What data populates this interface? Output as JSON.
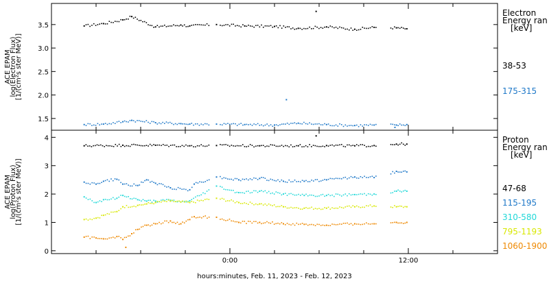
{
  "chart_data": [
    {
      "type": "scatter",
      "title": "",
      "ylabel_lines": [
        "ACE EPAM",
        "log(Electron Flux)",
        "[1/(cm²s ster MeV)]"
      ],
      "ylim": [
        1.25,
        3.95
      ],
      "yticks": [
        1.5,
        2.0,
        2.5,
        3.0,
        3.5
      ],
      "ytick_labels": [
        "1.5",
        "2.0",
        "2.5",
        "3.0",
        "3.5"
      ],
      "legend_title": [
        "Electron",
        "Energy ran",
        "[keV]"
      ],
      "series": [
        {
          "name": "38-53",
          "color": "#000000",
          "values": [
            [
              -9.8,
              3.47
            ],
            [
              -8.5,
              3.52
            ],
            [
              -7.2,
              3.6
            ],
            [
              -6.6,
              3.67
            ],
            [
              -5.0,
              3.45
            ],
            [
              -3.3,
              3.49
            ],
            [
              -2.7,
              3.47
            ],
            [
              -0.9,
              3.5
            ],
            [
              1.0,
              3.47
            ],
            [
              3.0,
              3.46
            ],
            [
              4.6,
              3.42
            ],
            [
              6.5,
              3.45
            ],
            [
              8.4,
              3.4
            ],
            [
              9.7,
              3.44
            ],
            [
              11.2,
              3.43
            ],
            [
              11.9,
              3.41
            ]
          ],
          "outliers": [
            [
              5.8,
              3.78
            ]
          ]
        },
        {
          "name": "175-315",
          "color": "#1e78c8",
          "values": [
            [
              -9.8,
              1.37
            ],
            [
              -8.5,
              1.38
            ],
            [
              -7.2,
              1.43
            ],
            [
              -6.6,
              1.46
            ],
            [
              -5.0,
              1.41
            ],
            [
              -3.3,
              1.39
            ],
            [
              -2.7,
              1.38
            ],
            [
              -0.9,
              1.38
            ],
            [
              1.0,
              1.37
            ],
            [
              3.0,
              1.36
            ],
            [
              4.6,
              1.4
            ],
            [
              6.5,
              1.37
            ],
            [
              8.4,
              1.35
            ],
            [
              9.7,
              1.36
            ],
            [
              11.2,
              1.36
            ],
            [
              11.9,
              1.37
            ]
          ],
          "outliers": [
            [
              3.8,
              1.9
            ],
            [
              11.1,
              1.31
            ]
          ]
        }
      ]
    },
    {
      "type": "scatter",
      "title": "",
      "ylabel_lines": [
        "ACE EPAM",
        "log(Proton Flux)",
        "[1/(cm²s ster MeV)]"
      ],
      "ylim": [
        -0.1,
        4.25
      ],
      "yticks": [
        0,
        1,
        2,
        3,
        4
      ],
      "ytick_labels": [
        "0",
        "1",
        "2",
        "3",
        "4"
      ],
      "legend_title": [
        "Proton",
        "Energy ran",
        "[keV]"
      ],
      "series": [
        {
          "name": "47-68",
          "color": "#000000",
          "values": [
            [
              -9.8,
              3.7
            ],
            [
              -7.2,
              3.72
            ],
            [
              -5.0,
              3.72
            ],
            [
              -2.7,
              3.7
            ],
            [
              -0.9,
              3.71
            ],
            [
              2.0,
              3.7
            ],
            [
              4.6,
              3.7
            ],
            [
              6.5,
              3.71
            ],
            [
              8.4,
              3.7
            ],
            [
              9.7,
              3.71
            ],
            [
              11.2,
              3.76
            ],
            [
              11.9,
              3.76
            ]
          ],
          "outliers": [
            [
              5.8,
              4.05
            ]
          ]
        },
        {
          "name": "115-195",
          "color": "#1e78c8",
          "values": [
            [
              -9.8,
              2.42
            ],
            [
              -9.0,
              2.35
            ],
            [
              -8.5,
              2.45
            ],
            [
              -7.6,
              2.52
            ],
            [
              -7.2,
              2.35
            ],
            [
              -6.2,
              2.3
            ],
            [
              -5.6,
              2.5
            ],
            [
              -5.0,
              2.38
            ],
            [
              -4.0,
              2.22
            ],
            [
              -2.7,
              2.15
            ],
            [
              -2.4,
              2.35
            ],
            [
              -0.9,
              2.6
            ],
            [
              0.6,
              2.5
            ],
            [
              2.0,
              2.55
            ],
            [
              3.6,
              2.45
            ],
            [
              5.0,
              2.45
            ],
            [
              6.5,
              2.5
            ],
            [
              8.4,
              2.6
            ],
            [
              9.7,
              2.58
            ],
            [
              11.2,
              2.8
            ],
            [
              11.9,
              2.78
            ]
          ],
          "outliers": []
        },
        {
          "name": "310-580",
          "color": "#20d8d8",
          "values": [
            [
              -9.8,
              1.9
            ],
            [
              -9.0,
              1.7
            ],
            [
              -8.5,
              1.8
            ],
            [
              -7.6,
              1.85
            ],
            [
              -7.2,
              1.95
            ],
            [
              -6.2,
              1.8
            ],
            [
              -5.6,
              1.75
            ],
            [
              -5.0,
              1.75
            ],
            [
              -4.0,
              1.78
            ],
            [
              -3.3,
              1.72
            ],
            [
              -2.7,
              1.76
            ],
            [
              -0.9,
              2.28
            ],
            [
              0.6,
              2.05
            ],
            [
              2.0,
              2.1
            ],
            [
              3.6,
              2.0
            ],
            [
              5.0,
              1.95
            ],
            [
              6.5,
              1.95
            ],
            [
              8.4,
              1.98
            ],
            [
              9.7,
              2.0
            ],
            [
              11.2,
              2.1
            ],
            [
              11.9,
              2.1
            ]
          ],
          "outliers": []
        },
        {
          "name": "795-1193",
          "color": "#d8e800",
          "values": [
            [
              -9.8,
              1.1
            ],
            [
              -9.0,
              1.15
            ],
            [
              -8.5,
              1.25
            ],
            [
              -7.6,
              1.38
            ],
            [
              -7.2,
              1.55
            ],
            [
              -6.2,
              1.6
            ],
            [
              -5.6,
              1.65
            ],
            [
              -5.0,
              1.7
            ],
            [
              -4.0,
              1.75
            ],
            [
              -3.3,
              1.72
            ],
            [
              -2.7,
              1.7
            ],
            [
              -0.9,
              1.85
            ],
            [
              0.6,
              1.7
            ],
            [
              2.0,
              1.65
            ],
            [
              3.6,
              1.55
            ],
            [
              5.0,
              1.5
            ],
            [
              6.5,
              1.5
            ],
            [
              8.4,
              1.55
            ],
            [
              9.7,
              1.58
            ],
            [
              11.2,
              1.55
            ],
            [
              11.9,
              1.55
            ]
          ],
          "outliers": []
        },
        {
          "name": "1060-1900",
          "color": "#ee8800",
          "values": [
            [
              -9.8,
              0.48
            ],
            [
              -9.0,
              0.45
            ],
            [
              -8.5,
              0.42
            ],
            [
              -7.6,
              0.5
            ],
            [
              -7.2,
              0.4
            ],
            [
              -6.6,
              0.6
            ],
            [
              -6.2,
              0.75
            ],
            [
              -5.6,
              0.9
            ],
            [
              -5.0,
              0.95
            ],
            [
              -4.0,
              1.05
            ],
            [
              -3.3,
              0.95
            ],
            [
              -2.7,
              1.1
            ],
            [
              -2.4,
              1.2
            ],
            [
              -0.9,
              1.18
            ],
            [
              0.6,
              1.0
            ],
            [
              2.0,
              1.0
            ],
            [
              3.6,
              0.95
            ],
            [
              5.0,
              0.93
            ],
            [
              6.5,
              0.9
            ],
            [
              8.4,
              0.95
            ],
            [
              9.7,
              0.95
            ],
            [
              11.2,
              1.0
            ],
            [
              11.9,
              1.0
            ]
          ],
          "outliers": [
            [
              -7.0,
              0.12
            ]
          ]
        }
      ]
    }
  ],
  "x_axis": {
    "xlabel": "hours:minutes, Feb. 11, 2023 - Feb. 12, 2023",
    "xlim": [
      -12,
      18
    ],
    "tick_labels": [
      {
        "x": 0,
        "label": "0:00"
      },
      {
        "x": 12,
        "label": "12:00"
      }
    ]
  }
}
